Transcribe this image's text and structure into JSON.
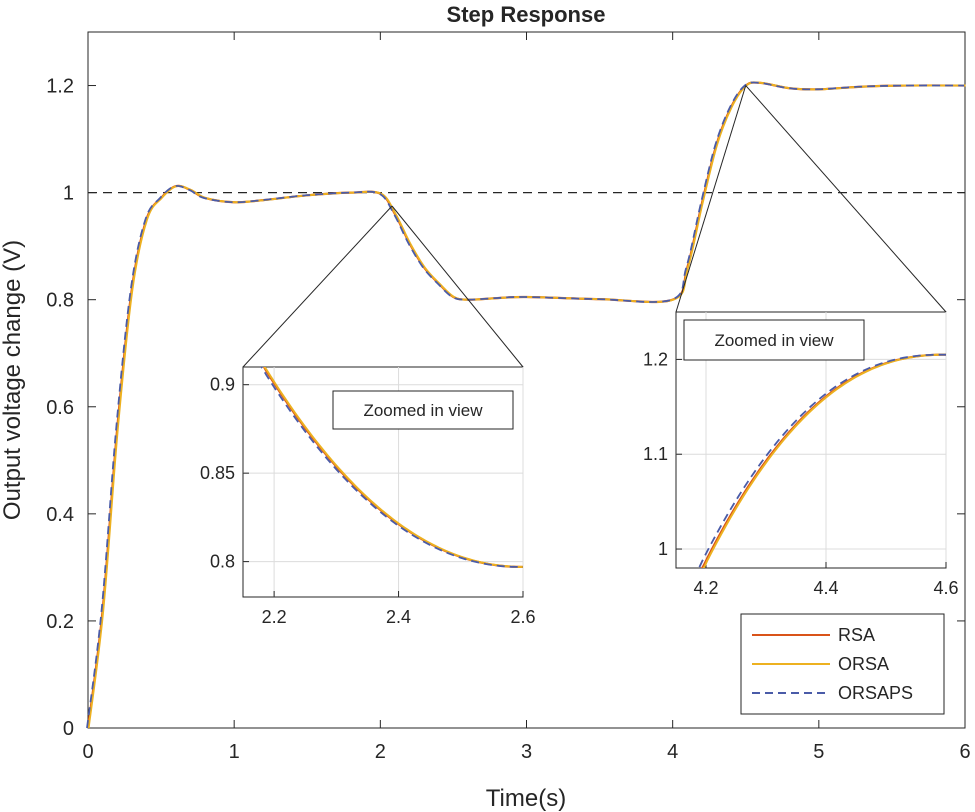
{
  "chart_data": {
    "type": "line",
    "title": "Step Response",
    "xlabel": "Time(s)",
    "ylabel": "Output voltage change (V)",
    "xlim": [
      0,
      6
    ],
    "ylim": [
      0,
      1.3
    ],
    "xticks": [
      "0",
      "1",
      "2",
      "3",
      "4",
      "5",
      "6"
    ],
    "yticks": [
      "0",
      "0.2",
      "0.4",
      "0.6",
      "0.8",
      "1",
      "1.2"
    ],
    "reference_line": {
      "y": 1.0,
      "style": "dashed"
    },
    "series": [
      {
        "name": "RSA",
        "color": "#D95319",
        "style": "solid"
      },
      {
        "name": "ORSA",
        "color": "#EDB120",
        "style": "solid"
      },
      {
        "name": "ORSAPS",
        "color": "#4A5BA8",
        "style": "dashed"
      }
    ],
    "x": [
      0,
      0.1,
      0.2,
      0.3,
      0.4,
      0.5,
      0.6,
      0.7,
      0.8,
      1.0,
      1.2,
      1.5,
      1.8,
      2.0,
      2.1,
      2.2,
      2.3,
      2.4,
      2.5,
      2.6,
      2.8,
      3.0,
      3.5,
      4.0,
      4.1,
      4.2,
      4.3,
      4.4,
      4.5,
      4.6,
      4.8,
      5.0,
      5.3,
      5.6,
      6.0
    ],
    "y_common": [
      0,
      0.22,
      0.56,
      0.82,
      0.95,
      0.99,
      1.012,
      1.005,
      0.99,
      0.982,
      0.986,
      0.995,
      1.0,
      0.998,
      0.96,
      0.905,
      0.86,
      0.83,
      0.805,
      0.8,
      0.803,
      0.805,
      0.801,
      0.8,
      0.86,
      0.98,
      1.09,
      1.16,
      1.2,
      1.205,
      1.195,
      1.193,
      1.198,
      1.2,
      1.2
    ],
    "insets": [
      {
        "label": "Zoomed in view",
        "xlim": [
          2.15,
          2.6
        ],
        "ylim": [
          0.78,
          0.91
        ],
        "xticks": [
          "2.2",
          "2.4",
          "2.6"
        ],
        "yticks": [
          "0.8",
          "0.85",
          "0.9"
        ]
      },
      {
        "label": "Zoomed in view",
        "xlim": [
          4.15,
          4.6
        ],
        "ylim": [
          0.98,
          1.25
        ],
        "xticks": [
          "4.2",
          "4.4",
          "4.6"
        ],
        "yticks": [
          "1",
          "1.1",
          "1.2"
        ]
      }
    ],
    "legend": {
      "position": "bottom-right",
      "entries": [
        "RSA",
        "ORSA",
        "ORSAPS"
      ]
    }
  }
}
